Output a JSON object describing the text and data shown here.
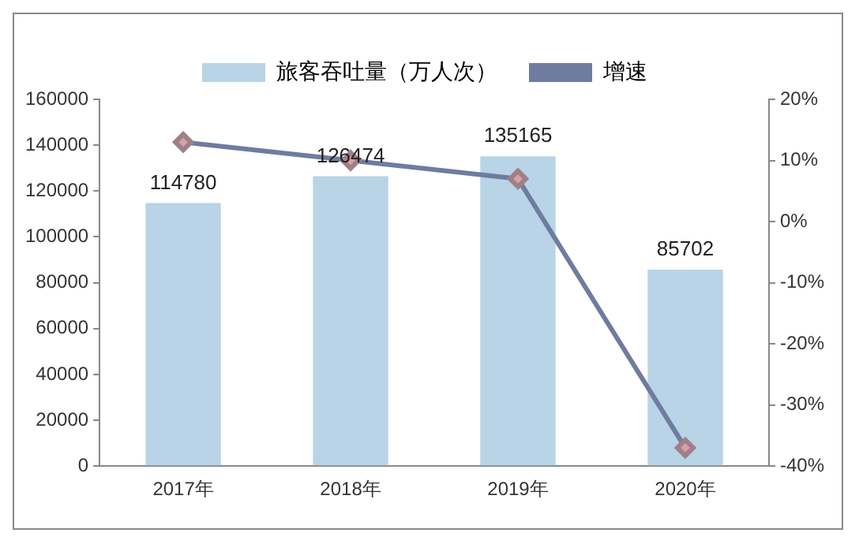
{
  "chart_data": {
    "type": "bar",
    "categories": [
      "2017年",
      "2018年",
      "2019年",
      "2020年"
    ],
    "series": [
      {
        "name": "旅客吞吐量（万人次）",
        "color": "#b8d4e6",
        "values": [
          114780,
          126474,
          135165,
          85702
        ],
        "value_labels": [
          "114780",
          "126474",
          "135165",
          "85702"
        ]
      },
      {
        "name": "增速",
        "type": "line",
        "axis": "y2",
        "color": "#6f7ca0",
        "values": [
          13,
          10,
          7,
          -37
        ],
        "marker": "diamond"
      }
    ],
    "ylim": [
      0,
      160000
    ],
    "yticks": [
      0,
      20000,
      40000,
      60000,
      80000,
      100000,
      120000,
      140000,
      160000
    ],
    "y2lim": [
      -40,
      20
    ],
    "y2ticks": [
      {
        "value": -40,
        "label": "-40%"
      },
      {
        "value": -30,
        "label": "-30%"
      },
      {
        "value": -20,
        "label": "-20%"
      },
      {
        "value": -10,
        "label": "-10%"
      },
      {
        "value": 0,
        "label": "0%"
      },
      {
        "value": 10,
        "label": "10%"
      },
      {
        "value": 20,
        "label": "20%"
      }
    ],
    "grid": false,
    "legend": "top"
  }
}
